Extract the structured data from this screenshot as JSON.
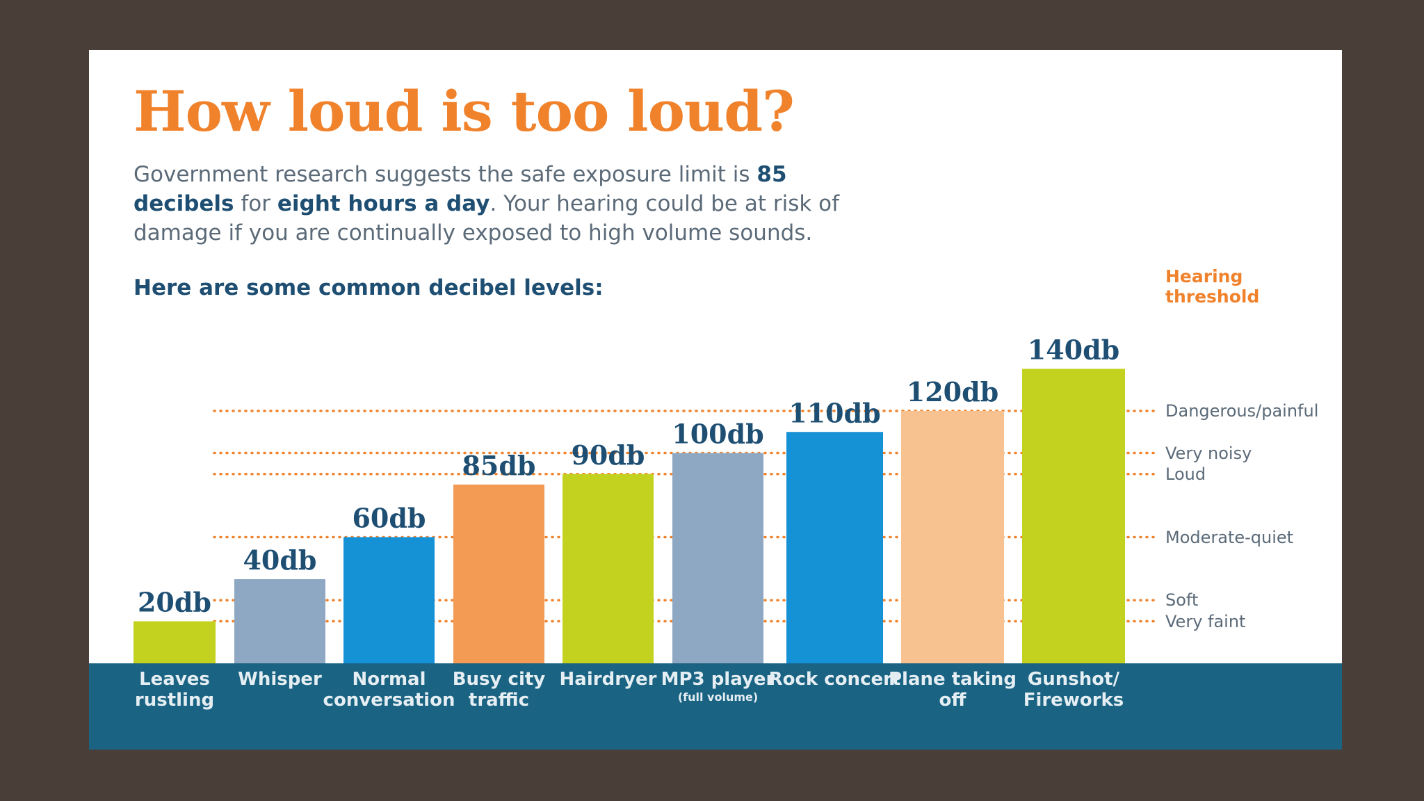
{
  "header": {
    "title": "How loud is too loud?",
    "intro_part1": "Government research suggests the safe exposure limit is ",
    "intro_bold1": "85 decibels",
    "intro_part2": " for ",
    "intro_bold2": "eight hours a day",
    "intro_part3": ".  Your hearing could be at risk of damage if you are continually exposed to high volume sounds.",
    "subheading": "Here are some common decibel levels:"
  },
  "chart_data": {
    "type": "bar",
    "title": "How loud is too loud?",
    "categories": [
      {
        "name": "Leaves rustling",
        "sub": ""
      },
      {
        "name": "Whisper",
        "sub": ""
      },
      {
        "name": "Normal conversation",
        "sub": ""
      },
      {
        "name": "Busy city traffic",
        "sub": ""
      },
      {
        "name": "Hairdryer",
        "sub": ""
      },
      {
        "name": "MP3 player",
        "sub": "(full volume)"
      },
      {
        "name": "Rock concert",
        "sub": ""
      },
      {
        "name": "Plane taking off",
        "sub": ""
      },
      {
        "name": "Gunshot/ Fireworks",
        "sub": ""
      }
    ],
    "values": [
      20,
      40,
      60,
      85,
      90,
      100,
      110,
      120,
      140
    ],
    "value_labels": [
      "20db",
      "40db",
      "60db",
      "85db",
      "90db",
      "100db",
      "110db",
      "120db",
      "140db"
    ],
    "colors": [
      "#c3d21e",
      "#8ea8c3",
      "#1591d6",
      "#f39a55",
      "#c3d21e",
      "#8ea8c3",
      "#1591d6",
      "#f8c190",
      "#c3d21e"
    ],
    "ylim": [
      0,
      140
    ],
    "threshold_heading": "Hearing threshold",
    "thresholds": [
      {
        "label": "Dangerous/painful",
        "value": 120
      },
      {
        "label": "Very noisy",
        "value": 100
      },
      {
        "label": "Loud",
        "value": 90
      },
      {
        "label": "Moderate-quiet",
        "value": 60
      },
      {
        "label": "Soft",
        "value": 30
      },
      {
        "label": "Very faint",
        "value": 20
      }
    ],
    "threshold_color": "#f0822c"
  }
}
